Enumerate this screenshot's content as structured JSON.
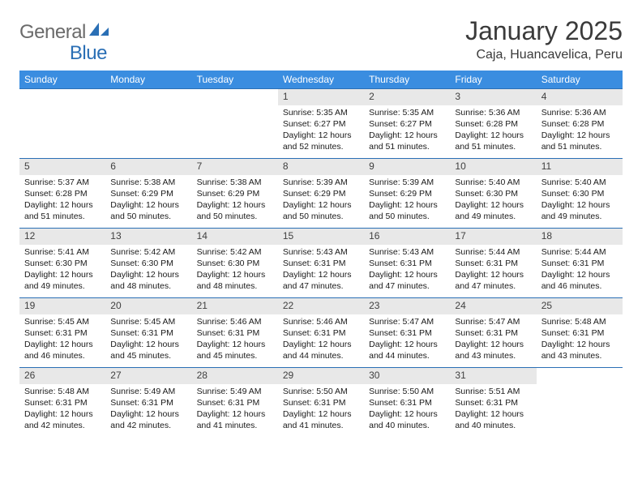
{
  "brand": {
    "text1": "General",
    "text2": "Blue"
  },
  "title": "January 2025",
  "location": "Caja, Huancavelica, Peru",
  "dayHeaders": [
    "Sunday",
    "Monday",
    "Tuesday",
    "Wednesday",
    "Thursday",
    "Friday",
    "Saturday"
  ],
  "headerBg": "#3a8de0",
  "headerFg": "#ffffff",
  "dayNumBg": "#e8e8e8",
  "cellBorder": "#2a6fb5",
  "bodyBg": "#ffffff",
  "textColor": "#1a1a1a",
  "logoColor": "#2a6fb5",
  "firstWeekdayOffset": 3,
  "days": [
    {
      "n": 1,
      "rise": "5:35 AM",
      "set": "6:27 PM",
      "dl": "12 hours and 52 minutes."
    },
    {
      "n": 2,
      "rise": "5:35 AM",
      "set": "6:27 PM",
      "dl": "12 hours and 51 minutes."
    },
    {
      "n": 3,
      "rise": "5:36 AM",
      "set": "6:28 PM",
      "dl": "12 hours and 51 minutes."
    },
    {
      "n": 4,
      "rise": "5:36 AM",
      "set": "6:28 PM",
      "dl": "12 hours and 51 minutes."
    },
    {
      "n": 5,
      "rise": "5:37 AM",
      "set": "6:28 PM",
      "dl": "12 hours and 51 minutes."
    },
    {
      "n": 6,
      "rise": "5:38 AM",
      "set": "6:29 PM",
      "dl": "12 hours and 50 minutes."
    },
    {
      "n": 7,
      "rise": "5:38 AM",
      "set": "6:29 PM",
      "dl": "12 hours and 50 minutes."
    },
    {
      "n": 8,
      "rise": "5:39 AM",
      "set": "6:29 PM",
      "dl": "12 hours and 50 minutes."
    },
    {
      "n": 9,
      "rise": "5:39 AM",
      "set": "6:29 PM",
      "dl": "12 hours and 50 minutes."
    },
    {
      "n": 10,
      "rise": "5:40 AM",
      "set": "6:30 PM",
      "dl": "12 hours and 49 minutes."
    },
    {
      "n": 11,
      "rise": "5:40 AM",
      "set": "6:30 PM",
      "dl": "12 hours and 49 minutes."
    },
    {
      "n": 12,
      "rise": "5:41 AM",
      "set": "6:30 PM",
      "dl": "12 hours and 49 minutes."
    },
    {
      "n": 13,
      "rise": "5:42 AM",
      "set": "6:30 PM",
      "dl": "12 hours and 48 minutes."
    },
    {
      "n": 14,
      "rise": "5:42 AM",
      "set": "6:30 PM",
      "dl": "12 hours and 48 minutes."
    },
    {
      "n": 15,
      "rise": "5:43 AM",
      "set": "6:31 PM",
      "dl": "12 hours and 47 minutes."
    },
    {
      "n": 16,
      "rise": "5:43 AM",
      "set": "6:31 PM",
      "dl": "12 hours and 47 minutes."
    },
    {
      "n": 17,
      "rise": "5:44 AM",
      "set": "6:31 PM",
      "dl": "12 hours and 47 minutes."
    },
    {
      "n": 18,
      "rise": "5:44 AM",
      "set": "6:31 PM",
      "dl": "12 hours and 46 minutes."
    },
    {
      "n": 19,
      "rise": "5:45 AM",
      "set": "6:31 PM",
      "dl": "12 hours and 46 minutes."
    },
    {
      "n": 20,
      "rise": "5:45 AM",
      "set": "6:31 PM",
      "dl": "12 hours and 45 minutes."
    },
    {
      "n": 21,
      "rise": "5:46 AM",
      "set": "6:31 PM",
      "dl": "12 hours and 45 minutes."
    },
    {
      "n": 22,
      "rise": "5:46 AM",
      "set": "6:31 PM",
      "dl": "12 hours and 44 minutes."
    },
    {
      "n": 23,
      "rise": "5:47 AM",
      "set": "6:31 PM",
      "dl": "12 hours and 44 minutes."
    },
    {
      "n": 24,
      "rise": "5:47 AM",
      "set": "6:31 PM",
      "dl": "12 hours and 43 minutes."
    },
    {
      "n": 25,
      "rise": "5:48 AM",
      "set": "6:31 PM",
      "dl": "12 hours and 43 minutes."
    },
    {
      "n": 26,
      "rise": "5:48 AM",
      "set": "6:31 PM",
      "dl": "12 hours and 42 minutes."
    },
    {
      "n": 27,
      "rise": "5:49 AM",
      "set": "6:31 PM",
      "dl": "12 hours and 42 minutes."
    },
    {
      "n": 28,
      "rise": "5:49 AM",
      "set": "6:31 PM",
      "dl": "12 hours and 41 minutes."
    },
    {
      "n": 29,
      "rise": "5:50 AM",
      "set": "6:31 PM",
      "dl": "12 hours and 41 minutes."
    },
    {
      "n": 30,
      "rise": "5:50 AM",
      "set": "6:31 PM",
      "dl": "12 hours and 40 minutes."
    },
    {
      "n": 31,
      "rise": "5:51 AM",
      "set": "6:31 PM",
      "dl": "12 hours and 40 minutes."
    }
  ],
  "labels": {
    "sunrise": "Sunrise:",
    "sunset": "Sunset:",
    "daylight": "Daylight:"
  }
}
